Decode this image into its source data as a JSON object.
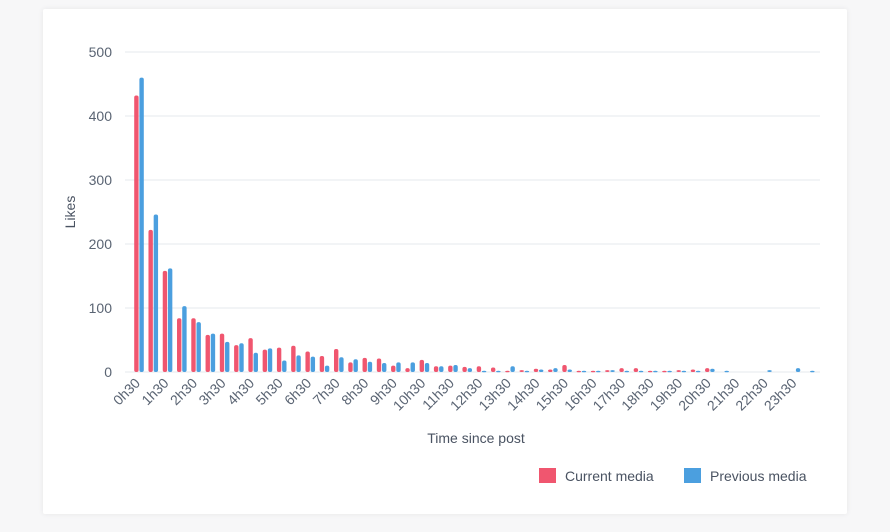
{
  "colors": {
    "current": "#f0566f",
    "previous": "#4b9fdf",
    "grid": "#e6e9ee",
    "text": "#5a6473"
  },
  "chart_data": {
    "type": "bar",
    "xlabel": "Time since post",
    "ylabel": "Likes",
    "ylim": [
      0,
      500
    ],
    "yticks": [
      "0",
      "100",
      "200",
      "300",
      "400",
      "500"
    ],
    "x_tick_labels": [
      "0h30",
      "1h30",
      "2h30",
      "3h30",
      "4h30",
      "5h30",
      "6h30",
      "7h30",
      "8h30",
      "9h30",
      "10h30",
      "11h30",
      "12h30",
      "13h30",
      "14h30",
      "15h30",
      "16h30",
      "17h30",
      "18h30",
      "19h30",
      "20h30",
      "21h30",
      "22h30",
      "23h30"
    ],
    "categories": [
      "0h30",
      "1h00",
      "1h30",
      "2h00",
      "2h30",
      "3h00",
      "3h30",
      "4h00",
      "4h30",
      "5h00",
      "5h30",
      "6h00",
      "6h30",
      "7h00",
      "7h30",
      "8h00",
      "8h30",
      "9h00",
      "9h30",
      "10h00",
      "10h30",
      "11h00",
      "11h30",
      "12h00",
      "12h30",
      "13h00",
      "13h30",
      "14h00",
      "14h30",
      "15h00",
      "15h30",
      "16h00",
      "16h30",
      "17h00",
      "17h30",
      "18h00",
      "18h30",
      "19h00",
      "19h30",
      "20h00",
      "20h30",
      "21h00",
      "21h30",
      "22h00",
      "22h30",
      "23h00",
      "23h30",
      "24h00"
    ],
    "series": [
      {
        "name": "Current media",
        "color": "#f0566f",
        "values": [
          432,
          222,
          158,
          84,
          84,
          58,
          60,
          42,
          53,
          35,
          38,
          41,
          32,
          25,
          36,
          15,
          22,
          21,
          10,
          6,
          19,
          9,
          10,
          8,
          9,
          7,
          2,
          3,
          5,
          4,
          11,
          2,
          2,
          3,
          6,
          6,
          2,
          2,
          3,
          4,
          6,
          0,
          0,
          0,
          0,
          0,
          0,
          0
        ]
      },
      {
        "name": "Previous media",
        "color": "#4b9fdf",
        "values": [
          460,
          246,
          162,
          103,
          78,
          60,
          47,
          45,
          30,
          37,
          18,
          26,
          24,
          10,
          23,
          20,
          16,
          14,
          15,
          15,
          14,
          9,
          11,
          6,
          2,
          2,
          9,
          2,
          4,
          6,
          4,
          2,
          2,
          3,
          2,
          2,
          2,
          2,
          2,
          2,
          5,
          2,
          0,
          0,
          3,
          0,
          6,
          2
        ]
      }
    ],
    "legend": [
      "Current media",
      "Previous media"
    ],
    "legend_position": "bottom-right",
    "grid": true
  }
}
